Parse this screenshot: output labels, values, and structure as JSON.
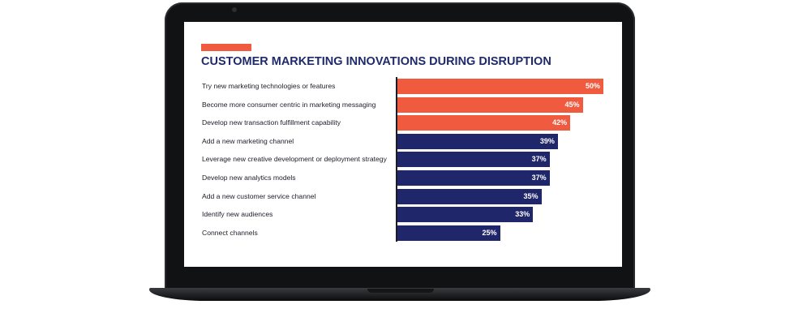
{
  "chart_data": {
    "type": "bar",
    "orientation": "horizontal",
    "title": "CUSTOMER MARKETING INNOVATIONS DURING DISRUPTION",
    "categories": [
      "Try new marketing technologies or features",
      "Become more consumer centric in marketing messaging",
      "Develop new transaction fulfillment capability",
      "Add a new marketing channel",
      "Leverage new creative development or deployment strategy",
      "Develop new analytics models",
      "Add a new customer service channel",
      "Identify new audiences",
      "Connect channels"
    ],
    "values": [
      50,
      45,
      42,
      39,
      37,
      37,
      35,
      33,
      25
    ],
    "value_labels": [
      "50%",
      "45%",
      "42%",
      "39%",
      "37%",
      "37%",
      "35%",
      "33%",
      "25%"
    ],
    "bar_colors": [
      "#f05a3f",
      "#f05a3f",
      "#f05a3f",
      "#20266a",
      "#20266a",
      "#20266a",
      "#20266a",
      "#20266a",
      "#20266a"
    ],
    "xlim": [
      0,
      50
    ],
    "unit": "%",
    "grid": false,
    "legend": "none"
  },
  "colors": {
    "accent": "#f05a3f",
    "navy": "#20266a",
    "title": "#1f2a6b"
  }
}
